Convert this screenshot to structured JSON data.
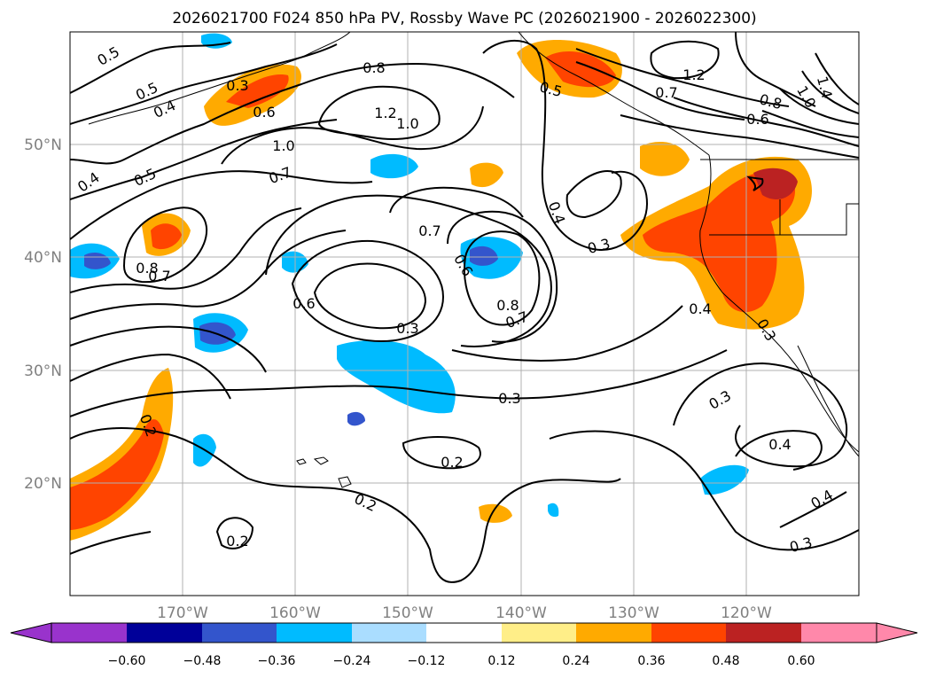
{
  "title": "2026021700 F024 850 hPa PV, Rossby Wave PC (2026021900 - 2026022300)",
  "map": {
    "lon_range": [
      -180,
      -110
    ],
    "lat_range": [
      10,
      60
    ],
    "lon_ticks": [
      "170°W",
      "160°W",
      "150°W",
      "140°W",
      "130°W",
      "120°W"
    ],
    "lat_ticks": [
      "20°N",
      "30°N",
      "40°N",
      "50°N"
    ],
    "gridlines": true
  },
  "colorbar": {
    "ticks": [
      "−0.60",
      "−0.48",
      "−0.36",
      "−0.24",
      "−0.12",
      "0.12",
      "0.24",
      "0.36",
      "0.48",
      "0.60"
    ],
    "colors": [
      "#9933cc",
      "#000099",
      "#3355cc",
      "#00bbff",
      "#aaddff",
      "#ffffff",
      "#ffee88",
      "#ffaa00",
      "#ff4400",
      "#bb2222",
      "#ff88aa"
    ]
  },
  "contour_labels": [
    "0.5",
    "0.5",
    "0.4",
    "0.3",
    "0.6",
    "0.8",
    "1.2",
    "1.0",
    "1.0",
    "0.7",
    "0.4",
    "0.5",
    "0.8",
    "0.7",
    "0.7",
    "0.6",
    "0.6",
    "0.3",
    "0.8",
    "0.7",
    "0.4",
    "0.3",
    "0.5",
    "0.7",
    "0.6",
    "0.8",
    "1.0",
    "1.4",
    "1.2",
    "0.3",
    "0.4",
    "0.3",
    "0.4",
    "0.2",
    "0.2",
    "0.2",
    "0.2",
    "0.4",
    "0.3",
    "0.3"
  ]
}
